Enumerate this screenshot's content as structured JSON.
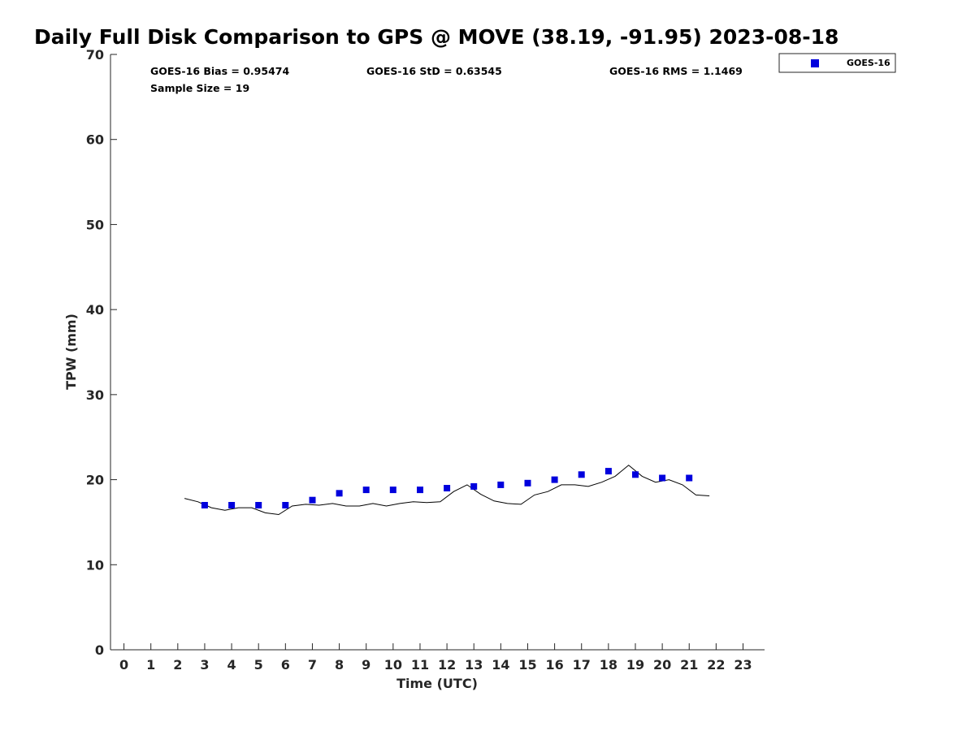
{
  "chart_data": {
    "type": "scatter",
    "title": "Daily Full Disk Comparison to GPS @ MOVE (38.19, -91.95) 2023-08-18",
    "xlabel": "Time (UTC)",
    "ylabel": "TPW (mm)",
    "xlim": [
      -0.5,
      23.8
    ],
    "ylim": [
      0,
      70
    ],
    "x_ticks": [
      "0",
      "1",
      "2",
      "3",
      "4",
      "5",
      "6",
      "7",
      "8",
      "9",
      "10",
      "11",
      "12",
      "13",
      "14",
      "15",
      "16",
      "17",
      "18",
      "19",
      "20",
      "21",
      "22",
      "23"
    ],
    "y_ticks": [
      "0",
      "10",
      "20",
      "30",
      "40",
      "50",
      "60",
      "70"
    ],
    "grid": false,
    "legend_position": "top-right (outside plot)",
    "stats": {
      "bias": "GOES-16 Bias = 0.95474",
      "std": "GOES-16 StD = 0.63545",
      "rms": "GOES-16 RMS = 1.1469",
      "sample_size": "Sample Size = 19"
    },
    "series": [
      {
        "name": "GOES-16",
        "kind": "scatter",
        "marker": "square",
        "color": "#0000dd",
        "x": [
          3,
          4,
          5,
          6,
          7,
          8,
          9,
          10,
          11,
          12,
          13,
          14,
          15,
          16,
          17,
          18,
          19,
          20,
          21
        ],
        "y": [
          17.0,
          17.0,
          17.0,
          17.0,
          17.6,
          18.4,
          18.8,
          18.8,
          18.8,
          19.0,
          19.2,
          19.4,
          19.6,
          20.0,
          20.6,
          21.0,
          20.6,
          20.2,
          20.2
        ]
      },
      {
        "kind": "line",
        "color": "#000000",
        "x": [
          2.25,
          2.75,
          3.25,
          3.75,
          4.25,
          4.75,
          5.25,
          5.75,
          6.25,
          6.75,
          7.25,
          7.75,
          8.25,
          8.75,
          9.25,
          9.75,
          10.25,
          10.75,
          11.25,
          11.75,
          12.25,
          12.75,
          13.25,
          13.75,
          14.25,
          14.75,
          15.25,
          15.75,
          16.25,
          16.75,
          17.25,
          17.75,
          18.25,
          18.75,
          19.25,
          19.75,
          20.25,
          20.75,
          21.25,
          21.75
        ],
        "y": [
          17.8,
          17.4,
          16.7,
          16.4,
          16.7,
          16.7,
          16.1,
          15.9,
          16.9,
          17.1,
          17.0,
          17.2,
          16.9,
          16.9,
          17.2,
          16.9,
          17.2,
          17.4,
          17.3,
          17.4,
          18.6,
          19.4,
          18.3,
          17.5,
          17.2,
          17.1,
          18.2,
          18.6,
          19.4,
          19.4,
          19.2,
          19.7,
          20.4,
          21.7,
          20.4,
          19.7,
          20.0,
          19.4,
          18.2,
          18.1
        ]
      }
    ]
  }
}
